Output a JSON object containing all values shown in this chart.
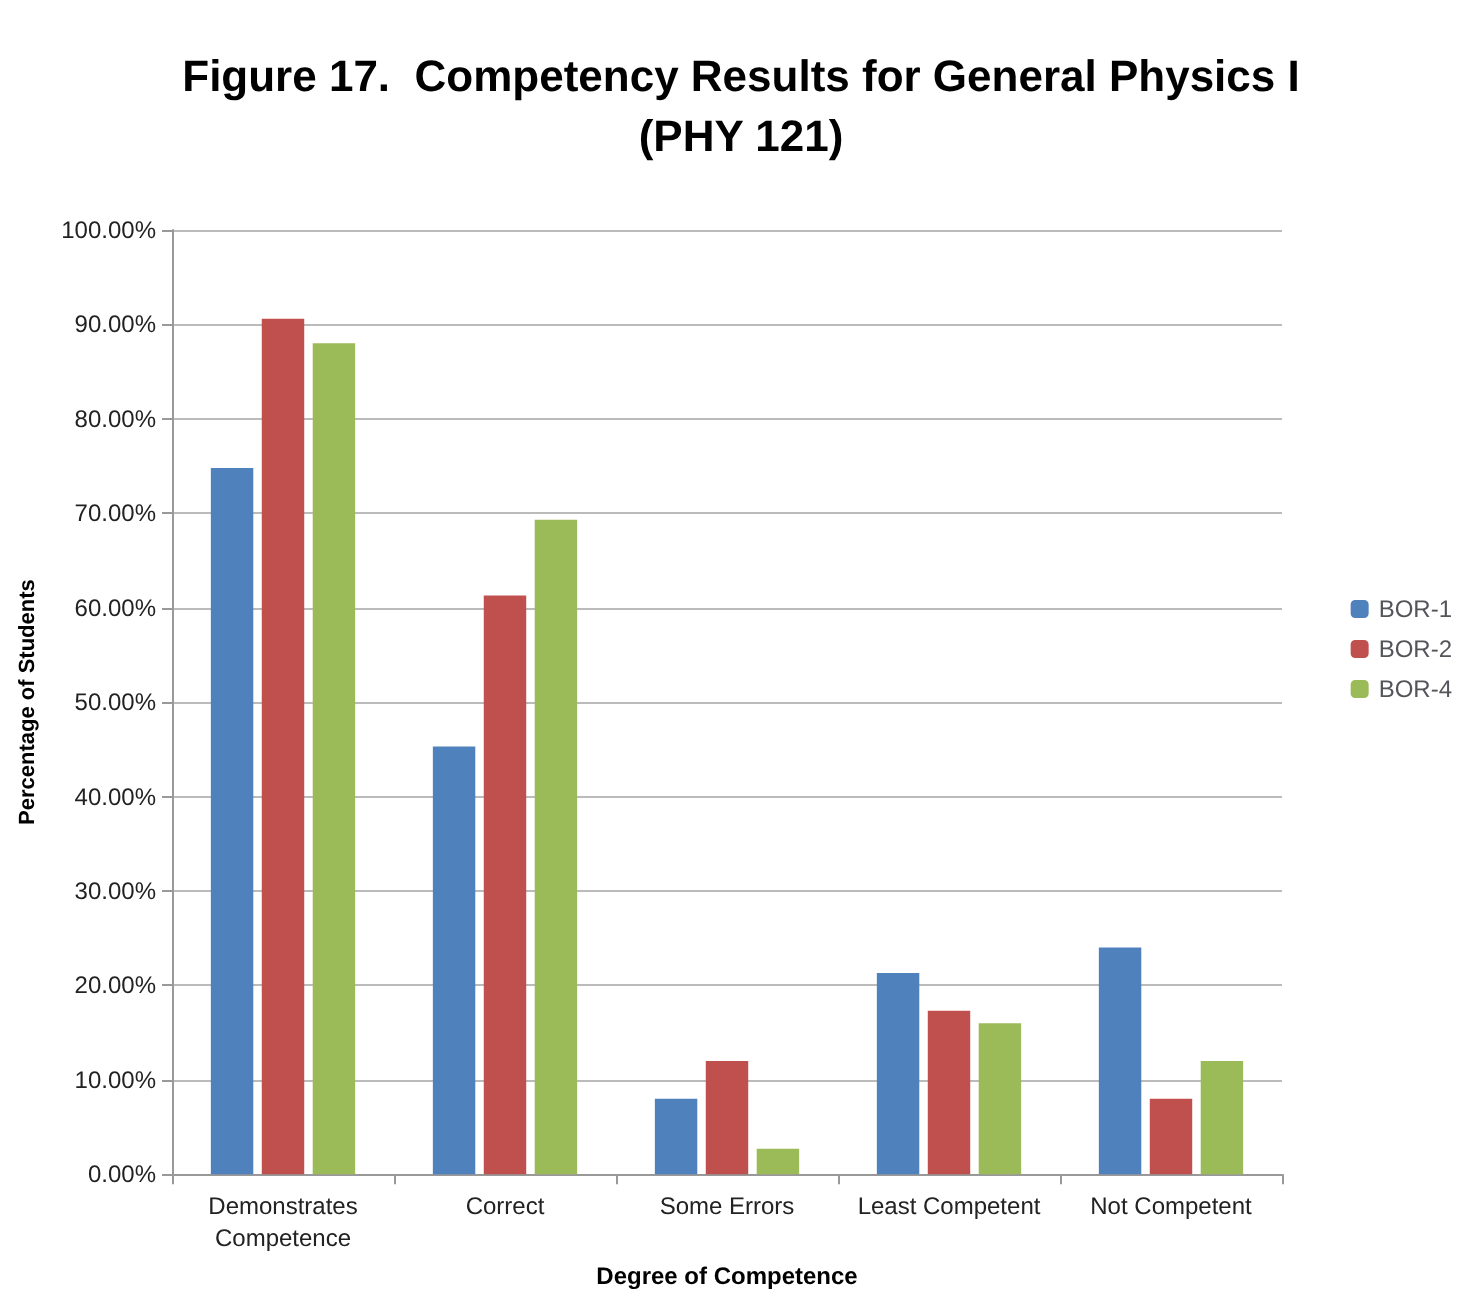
{
  "chart_data": {
    "type": "bar",
    "title": "Figure 17.  Competency Results for General Physics I\n(PHY 121)",
    "xlabel": "Degree of Competence",
    "ylabel": "Percentage of Students",
    "categories": [
      "Demonstrates\nCompetence",
      "Correct",
      "Some Errors",
      "Least Competent",
      "Not Competent"
    ],
    "series": [
      {
        "name": "BOR-1",
        "color": "#4f81bd",
        "values": [
          74.8,
          45.3,
          8.0,
          21.3,
          24.0
        ]
      },
      {
        "name": "BOR-2",
        "color": "#c0504d",
        "values": [
          90.6,
          61.3,
          12.0,
          17.3,
          8.0
        ]
      },
      {
        "name": "BOR-4",
        "color": "#9bbb59",
        "values": [
          88.0,
          69.3,
          2.7,
          16.0,
          12.0
        ]
      }
    ],
    "ylim": [
      0,
      100
    ],
    "yticks": [
      {
        "value": 0,
        "label": "0.00%"
      },
      {
        "value": 10,
        "label": "10.00%"
      },
      {
        "value": 20,
        "label": "20.00%"
      },
      {
        "value": 30,
        "label": "30.00%"
      },
      {
        "value": 40,
        "label": "40.00%"
      },
      {
        "value": 50,
        "label": "50.00%"
      },
      {
        "value": 60,
        "label": "60.00%"
      },
      {
        "value": 70,
        "label": "70.00%"
      },
      {
        "value": 80,
        "label": "80.00%"
      },
      {
        "value": 90,
        "label": "90.00%"
      },
      {
        "value": 100,
        "label": "100.00%"
      }
    ],
    "grid": "y",
    "legend": "right"
  }
}
